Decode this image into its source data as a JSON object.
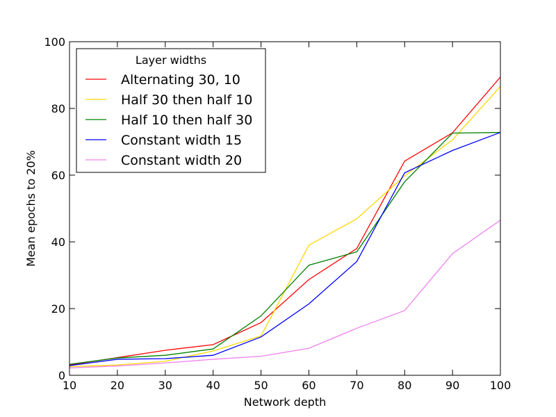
{
  "chart_data": {
    "type": "line",
    "title": "",
    "xlabel": "Network depth",
    "ylabel": "Mean epochs to 20%",
    "xlim": [
      10,
      100
    ],
    "ylim": [
      0,
      100
    ],
    "xticks": [
      10,
      20,
      30,
      40,
      50,
      60,
      70,
      80,
      90,
      100
    ],
    "yticks": [
      0,
      20,
      40,
      60,
      80,
      100
    ],
    "grid": false,
    "legend": {
      "title": "Layer widths",
      "placement": "top-left"
    },
    "x": [
      10,
      20,
      30,
      40,
      50,
      60,
      70,
      80,
      90,
      100
    ],
    "series": [
      {
        "name": "Alternating 30, 10",
        "color": "#ff0000",
        "values": [
          3.1,
          5.3,
          7.5,
          9.2,
          15.8,
          28.7,
          38.0,
          64.2,
          72.7,
          89.4
        ]
      },
      {
        "name": "Half 30 then half 10",
        "color": "#ffd700",
        "values": [
          2.6,
          3.1,
          4.2,
          7.3,
          11.8,
          39.0,
          46.9,
          59.8,
          70.6,
          86.6
        ]
      },
      {
        "name": "Half 10 then half 30",
        "color": "#008000",
        "values": [
          3.3,
          5.2,
          6.0,
          7.9,
          17.8,
          33.0,
          37.0,
          58.0,
          72.6,
          72.8
        ]
      },
      {
        "name": "Constant width 15",
        "color": "#0000ff",
        "values": [
          2.9,
          4.8,
          5.0,
          6.0,
          11.5,
          21.4,
          34.1,
          60.7,
          67.4,
          72.8
        ]
      },
      {
        "name": "Constant width 20",
        "color": "#ee82ee",
        "values": [
          2.2,
          2.8,
          3.7,
          4.8,
          5.7,
          8.1,
          14.1,
          19.4,
          36.5,
          46.5
        ]
      }
    ]
  }
}
